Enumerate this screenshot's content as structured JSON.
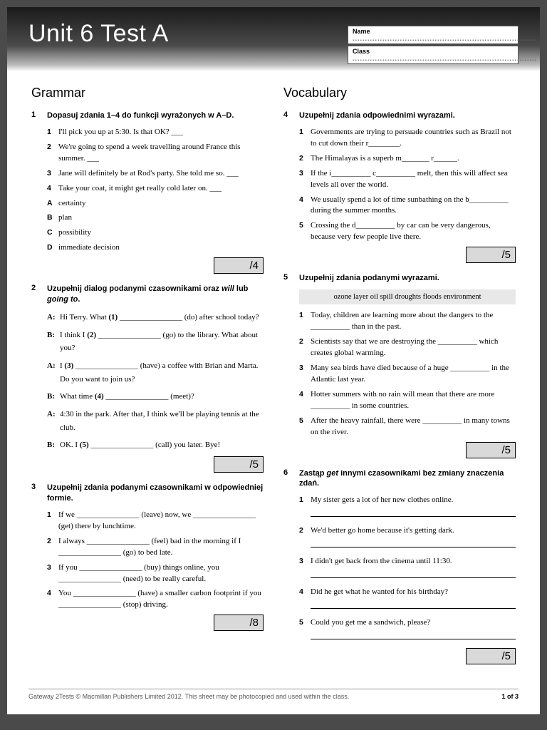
{
  "header": {
    "title": "Unit 6 Test A",
    "name_label": "Name",
    "class_label": "Class"
  },
  "left": {
    "section": "Grammar",
    "q1": {
      "num": "1",
      "title": "Dopasuj zdania 1–4 do funkcji wyrażonych w A–D.",
      "items": [
        {
          "n": "1",
          "t": "I'll pick you up at 5:30. Is that OK? ___"
        },
        {
          "n": "2",
          "t": "We're going to spend a week travelling around France this summer. ___"
        },
        {
          "n": "3",
          "t": "Jane will definitely be at Rod's party. She told me so. ___"
        },
        {
          "n": "4",
          "t": "Take your coat, it might get really cold later on. ___"
        }
      ],
      "opts": [
        {
          "n": "A",
          "t": "certainty"
        },
        {
          "n": "B",
          "t": "plan"
        },
        {
          "n": "C",
          "t": "possibility"
        },
        {
          "n": "D",
          "t": "immediate decision"
        }
      ],
      "score": "/4"
    },
    "q2": {
      "num": "2",
      "title_pre": "Uzupełnij dialog podanymi czasownikami oraz ",
      "title_i1": "will",
      "title_mid": " lub ",
      "title_i2": "going to",
      "title_post": ".",
      "lines": [
        {
          "s": "A:",
          "t": "Hi Terry. What <b>(1)</b> ________________ (do) after school today?"
        },
        {
          "s": "B:",
          "t": "I think I <b>(2)</b> ________________ (go) to the library. What about you?"
        },
        {
          "s": "A:",
          "t": "I <b>(3)</b> ________________ (have) a coffee with Brian and Marta. Do you want to join us?"
        },
        {
          "s": "B:",
          "t": "What time <b>(4)</b> ________________ (meet)?"
        },
        {
          "s": "A:",
          "t": "4:30 in the park. After that, I think we'll be playing tennis at the club."
        },
        {
          "s": "B:",
          "t": "OK. I <b>(5)</b> ________________ (call) you later. Bye!"
        }
      ],
      "score": "/5"
    },
    "q3": {
      "num": "3",
      "title": "Uzupełnij zdania podanymi czasownikami w odpowiedniej formie.",
      "items": [
        {
          "n": "1",
          "t": "If we ________________ (leave) now, we ________________ (get) there by lunchtime."
        },
        {
          "n": "2",
          "t": "I always ________________ (feel) bad in the morning if I ________________ (go) to bed late."
        },
        {
          "n": "3",
          "t": "If you ________________ (buy) things online, you ________________ (need) to be really careful."
        },
        {
          "n": "4",
          "t": "You ________________ (have) a smaller carbon footprint if you ________________ (stop) driving."
        }
      ],
      "score": "/8"
    }
  },
  "right": {
    "section": "Vocabulary",
    "q4": {
      "num": "4",
      "title": "Uzupełnij zdania odpowiednimi wyrazami.",
      "items": [
        {
          "n": "1",
          "t": "Governments are trying to persuade countries such as Brazil not to cut down their r________."
        },
        {
          "n": "2",
          "t": "The Himalayas is a superb m_______ r______."
        },
        {
          "n": "3",
          "t": "If the i__________ c__________ melt, then this will affect sea levels all over the world."
        },
        {
          "n": "4",
          "t": "We usually spend a lot of time sunbathing on the b__________ during the summer months."
        },
        {
          "n": "5",
          "t": "Crossing the d__________ by car can be very dangerous, because very few people live there."
        }
      ],
      "score": "/5"
    },
    "q5": {
      "num": "5",
      "title": "Uzupełnij zdania podanymi wyrazami.",
      "bank": "ozone layer  oil spill  droughts  floods  environment",
      "items": [
        {
          "n": "1",
          "t": "Today, children are learning more about the dangers to the __________ than in the past."
        },
        {
          "n": "2",
          "t": "Scientists say that we are destroying the __________ which creates global warming."
        },
        {
          "n": "3",
          "t": "Many sea birds have died because of a huge __________ in the Atlantic last year."
        },
        {
          "n": "4",
          "t": "Hotter summers with no rain will mean that there are more __________ in some countries."
        },
        {
          "n": "5",
          "t": "After the heavy rainfall, there were __________ in many towns on the river."
        }
      ],
      "score": "/5"
    },
    "q6": {
      "num": "6",
      "title_pre": "Zastąp ",
      "title_i": "get",
      "title_post": " innymi czasownikami bez zmiany znaczenia zdań.",
      "items": [
        {
          "n": "1",
          "t": "My sister gets a lot of her new clothes online."
        },
        {
          "n": "2",
          "t": "We'd better go home because it's getting dark."
        },
        {
          "n": "3",
          "t": "I didn't get back from the cinema until 11:30."
        },
        {
          "n": "4",
          "t": "Did he get what he wanted for his birthday?"
        },
        {
          "n": "5",
          "t": "Could you get me a sandwich, please?"
        }
      ],
      "score": "/5"
    }
  },
  "footer": {
    "left": "Gateway 2Tests © Macmillan Publishers Limited 2012. This sheet may be photocopied and used within the class.",
    "right": "1 of 3"
  }
}
